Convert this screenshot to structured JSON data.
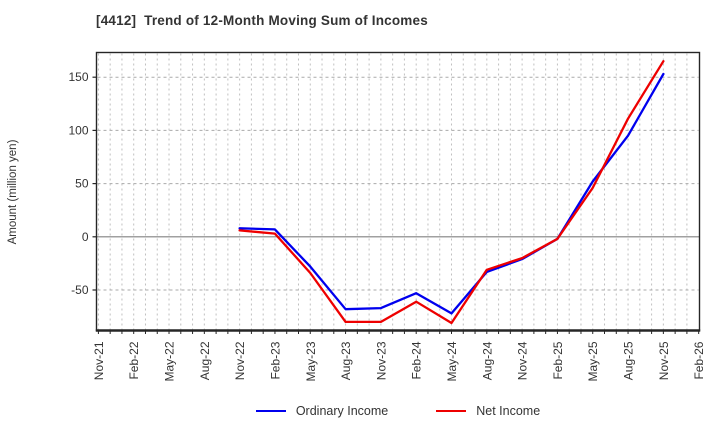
{
  "chart_data": {
    "type": "line",
    "title": "[4412]  Trend of 12-Month Moving Sum of Incomes",
    "ylabel": "Amount (million yen)",
    "xlabel": "",
    "x_tick_labels": [
      "Nov-21",
      "Feb-22",
      "May-22",
      "Aug-22",
      "Nov-22",
      "Feb-23",
      "May-23",
      "Aug-23",
      "Nov-23",
      "Feb-24",
      "May-24",
      "Aug-24",
      "Nov-24",
      "Feb-25",
      "May-25",
      "Aug-25",
      "Nov-25",
      "Feb-26"
    ],
    "x_tick_month_step": 3,
    "x_month_count": 51,
    "y_ticks": [
      -50,
      0,
      50,
      100,
      150
    ],
    "ylim": [
      -88,
      173
    ],
    "grid": "vertical dotted minor lines monthly; horizontal dashed lines at 50-step ticks; solid gray zero line",
    "legend_position": "bottom-center",
    "series": [
      {
        "name": "Ordinary Income",
        "color": "#0000ee",
        "start_month": 12,
        "month_step": 3,
        "x": [
          "Nov-22",
          "Feb-23",
          "May-23",
          "Aug-23",
          "Nov-23",
          "Feb-24",
          "May-24",
          "Aug-24",
          "Nov-24",
          "Feb-25",
          "May-25",
          "Aug-25",
          "Nov-25"
        ],
        "values": [
          8,
          7,
          -28,
          -68,
          -67,
          -53,
          -72,
          -33,
          -21,
          -2,
          52,
          95,
          153
        ]
      },
      {
        "name": "Net Income",
        "color": "#ee0000",
        "start_month": 12,
        "month_step": 3,
        "x": [
          "Nov-22",
          "Feb-23",
          "May-23",
          "Aug-23",
          "Nov-23",
          "Feb-24",
          "May-24",
          "Aug-24",
          "Nov-24",
          "Feb-25",
          "May-25",
          "Aug-25",
          "Nov-25"
        ],
        "values": [
          6,
          3,
          -34,
          -80,
          -80,
          -61,
          -81,
          -31,
          -20,
          -2,
          46,
          111,
          165
        ]
      }
    ],
    "colors": {
      "axis_border": "#262626",
      "zero_line": "#808080",
      "grid_dashed": "#aaaaaa",
      "grid_dotted": "#c0c0c0",
      "tick_text": "#333333",
      "background": "#ffffff"
    }
  }
}
